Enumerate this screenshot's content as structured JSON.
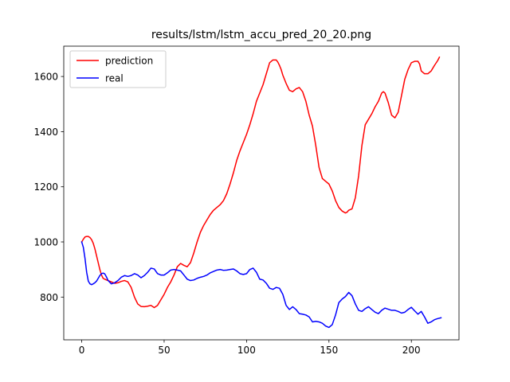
{
  "chart_data": {
    "type": "line",
    "title": "results/lstm/lstm_accu_pred_20_20.png",
    "xlabel": "",
    "ylabel": "",
    "xlim": [
      -10.9,
      228.9
    ],
    "ylim": [
      645,
      1710
    ],
    "xticks": [
      0,
      50,
      100,
      150,
      200
    ],
    "yticks": [
      800,
      1000,
      1200,
      1400,
      1600
    ],
    "grid": false,
    "legend_position": "top-left",
    "series": [
      {
        "name": "prediction",
        "color": "#ff0000",
        "x": [
          0,
          1,
          2,
          3,
          4,
          5,
          6,
          7,
          8,
          9,
          10,
          11,
          12,
          13,
          14,
          15,
          16,
          18,
          20,
          22,
          24,
          26,
          28,
          30,
          32,
          34,
          36,
          38,
          40,
          42,
          44,
          46,
          48,
          50,
          52,
          54,
          56,
          58,
          60,
          62,
          64,
          66,
          68,
          70,
          72,
          74,
          76,
          78,
          80,
          82,
          84,
          86,
          88,
          90,
          92,
          94,
          96,
          98,
          100,
          102,
          104,
          106,
          108,
          110,
          112,
          114,
          116,
          118,
          119,
          120,
          121,
          122,
          124,
          126,
          128,
          130,
          132,
          134,
          136,
          138,
          140,
          142,
          144,
          146,
          148,
          150,
          152,
          154,
          156,
          158,
          160,
          161,
          162,
          164,
          166,
          168,
          170,
          172,
          174,
          176,
          178,
          180,
          182,
          183,
          184,
          186,
          188,
          190,
          192,
          194,
          196,
          198,
          200,
          202,
          204,
          205,
          206,
          208,
          210,
          212,
          214,
          216,
          217
        ],
        "values": [
          1000,
          1010,
          1018,
          1020,
          1020,
          1016,
          1008,
          995,
          975,
          950,
          925,
          900,
          880,
          868,
          865,
          862,
          860,
          855,
          850,
          852,
          857,
          860,
          855,
          835,
          800,
          775,
          766,
          765,
          767,
          770,
          762,
          770,
          790,
          810,
          835,
          855,
          880,
          910,
          922,
          915,
          910,
          925,
          960,
          1000,
          1035,
          1060,
          1080,
          1100,
          1115,
          1125,
          1135,
          1150,
          1175,
          1210,
          1250,
          1295,
          1330,
          1360,
          1390,
          1425,
          1465,
          1510,
          1540,
          1570,
          1610,
          1650,
          1660,
          1660,
          1652,
          1640,
          1625,
          1605,
          1575,
          1550,
          1545,
          1555,
          1560,
          1545,
          1510,
          1460,
          1420,
          1350,
          1270,
          1230,
          1220,
          1210,
          1185,
          1150,
          1125,
          1112,
          1105,
          1108,
          1115,
          1120,
          1160,
          1240,
          1350,
          1425,
          1445,
          1465,
          1490,
          1510,
          1540,
          1545,
          1540,
          1505,
          1460,
          1450,
          1470,
          1530,
          1590,
          1625,
          1650,
          1655,
          1655,
          1645,
          1620,
          1610,
          1610,
          1620,
          1640,
          1658,
          1670
        ]
      },
      {
        "name": "real",
        "color": "#0000ff",
        "x": [
          0,
          1,
          2,
          3,
          4,
          5,
          6,
          7,
          8,
          9,
          10,
          11,
          12,
          13,
          14,
          15,
          16,
          18,
          20,
          22,
          24,
          26,
          28,
          30,
          32,
          34,
          36,
          38,
          40,
          42,
          44,
          46,
          48,
          50,
          52,
          54,
          56,
          58,
          60,
          62,
          64,
          66,
          68,
          70,
          72,
          74,
          76,
          78,
          80,
          82,
          84,
          86,
          88,
          90,
          92,
          94,
          96,
          98,
          100,
          102,
          104,
          106,
          108,
          110,
          112,
          114,
          116,
          118,
          120,
          122,
          124,
          126,
          128,
          130,
          132,
          134,
          136,
          138,
          140,
          142,
          144,
          146,
          148,
          150,
          152,
          154,
          156,
          158,
          160,
          162,
          164,
          166,
          168,
          170,
          172,
          174,
          176,
          178,
          180,
          182,
          184,
          186,
          188,
          190,
          192,
          194,
          196,
          198,
          200,
          202,
          204,
          206,
          208,
          210,
          212,
          214,
          216,
          218
        ],
        "values": [
          1000,
          980,
          940,
          890,
          858,
          848,
          845,
          848,
          852,
          858,
          868,
          878,
          885,
          887,
          884,
          873,
          860,
          848,
          852,
          860,
          872,
          878,
          875,
          878,
          885,
          880,
          870,
          878,
          890,
          905,
          902,
          885,
          880,
          880,
          888,
          898,
          900,
          898,
          895,
          880,
          865,
          860,
          862,
          868,
          872,
          875,
          880,
          888,
          893,
          898,
          900,
          897,
          898,
          900,
          902,
          895,
          885,
          882,
          885,
          900,
          905,
          890,
          865,
          862,
          850,
          832,
          828,
          835,
          832,
          810,
          770,
          755,
          765,
          755,
          740,
          738,
          735,
          728,
          710,
          712,
          710,
          705,
          695,
          690,
          700,
          735,
          780,
          793,
          802,
          817,
          805,
          775,
          752,
          748,
          758,
          765,
          755,
          745,
          740,
          752,
          760,
          756,
          752,
          752,
          748,
          742,
          745,
          755,
          763,
          750,
          738,
          748,
          728,
          705,
          710,
          718,
          722,
          725
        ]
      }
    ]
  }
}
